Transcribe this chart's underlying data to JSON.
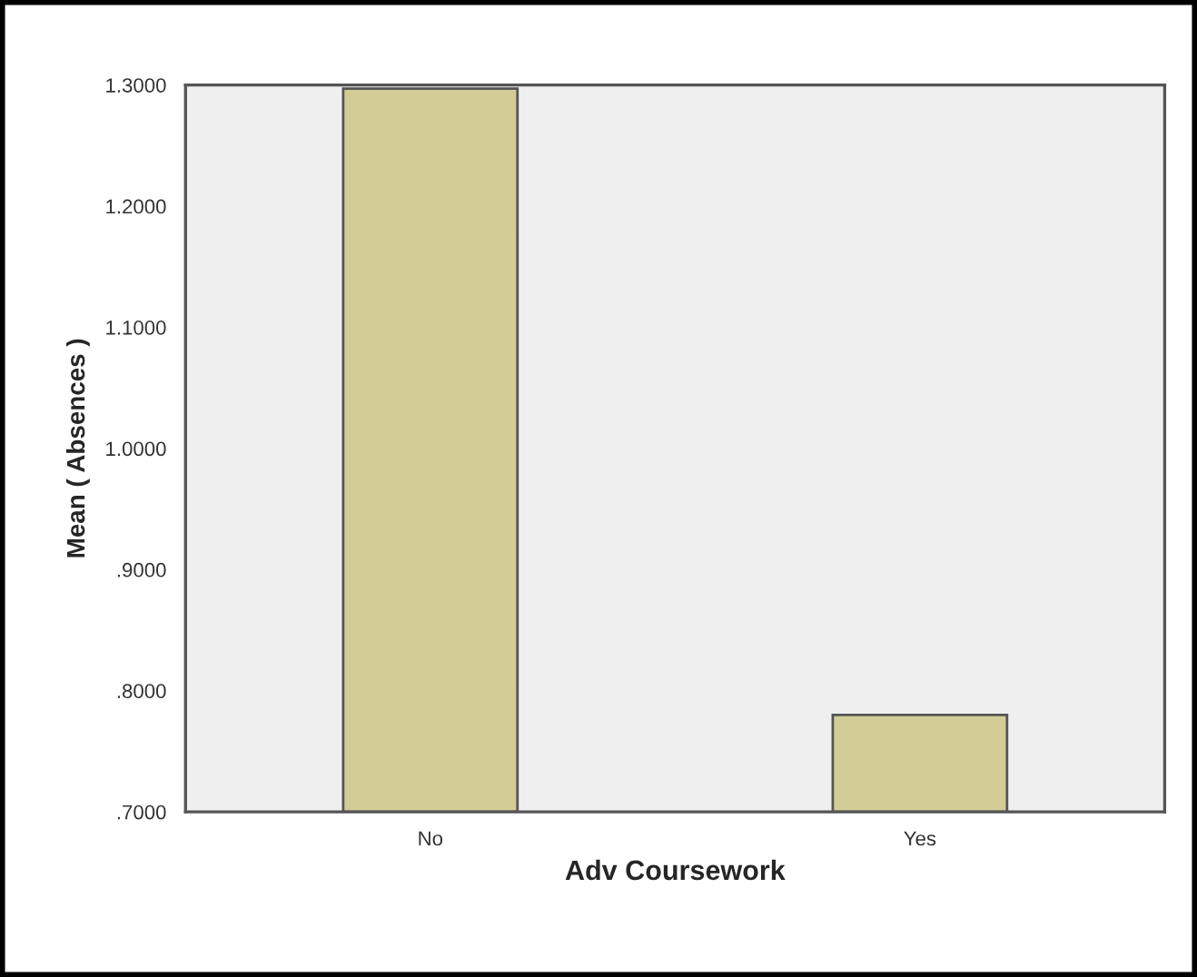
{
  "chart_data": {
    "type": "bar",
    "xlabel": "Adv Coursework",
    "ylabel": "Mean ( Absences )",
    "categories": [
      "No",
      "Yes"
    ],
    "values": [
      1.297,
      0.78
    ],
    "color": "#d2cd96",
    "ylim": [
      0.7,
      1.3
    ],
    "yticks": [
      {
        "value": 0.7,
        "label": ".7000"
      },
      {
        "value": 0.8,
        "label": ".8000"
      },
      {
        "value": 0.9,
        "label": ".9000"
      },
      {
        "value": 1.0,
        "label": "1.0000"
      },
      {
        "value": 1.1,
        "label": "1.1000"
      },
      {
        "value": 1.2,
        "label": "1.2000"
      },
      {
        "value": 1.3,
        "label": "1.3000"
      }
    ],
    "grid": false,
    "legend": false
  }
}
